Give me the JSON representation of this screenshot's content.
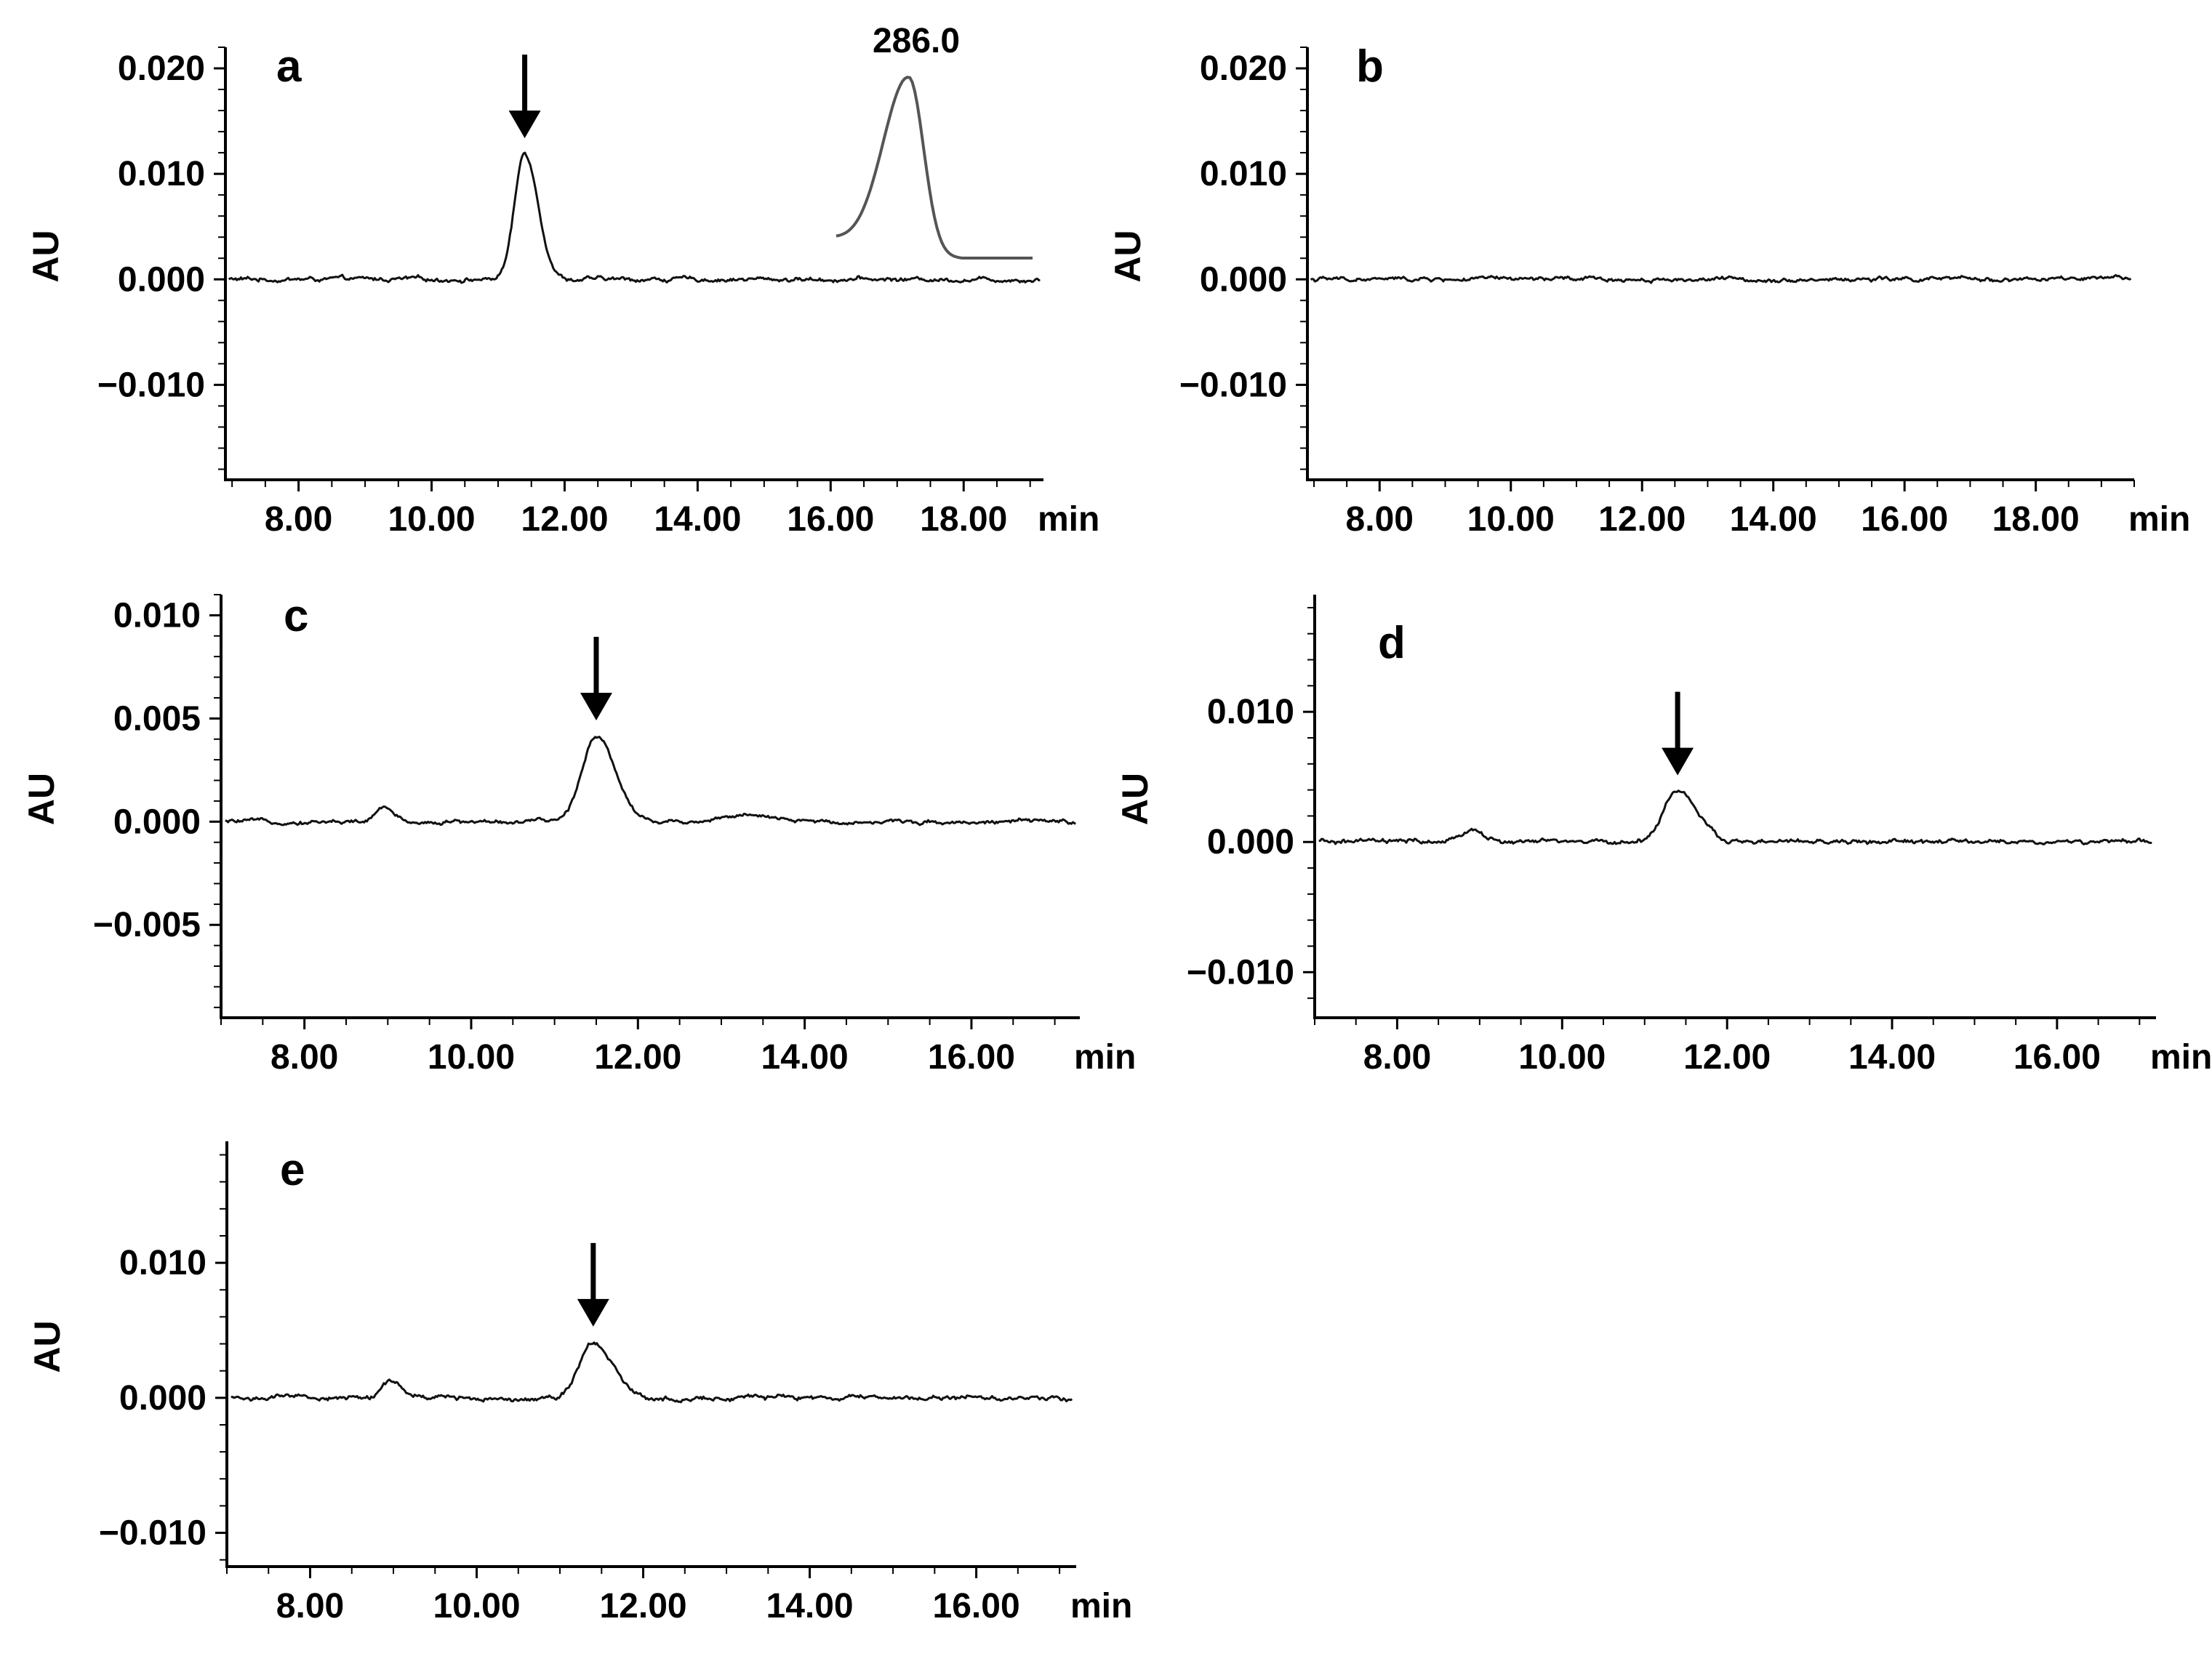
{
  "chart_data": [
    {
      "id": "a",
      "type": "line",
      "panel_label": "a",
      "ylabel": "AU",
      "x_unit_label": "min",
      "xlim": [
        6.9,
        19.2
      ],
      "ylim": [
        -0.019,
        0.022
      ],
      "xticks": [
        8,
        10,
        12,
        14,
        16,
        18
      ],
      "xtick_labels": [
        "8.00",
        "10.00",
        "12.00",
        "14.00",
        "16.00",
        "18.00"
      ],
      "yticks": [
        -0.01,
        0.0,
        0.01,
        0.02
      ],
      "ytick_labels": [
        "-0.010",
        "0.000",
        "0.010",
        "0.020"
      ],
      "baseline": 0.0,
      "noise": 0.00025,
      "peaks": [
        {
          "x": 11.4,
          "height": 0.012,
          "width": 0.15
        }
      ],
      "arrow_x": 11.4,
      "inset": {
        "label": "286.0"
      }
    },
    {
      "id": "b",
      "type": "line",
      "panel_label": "b",
      "ylabel": "AU",
      "x_unit_label": "min",
      "xlim": [
        6.9,
        19.5
      ],
      "ylim": [
        -0.019,
        0.022
      ],
      "xticks": [
        8,
        10,
        12,
        14,
        16,
        18
      ],
      "xtick_labels": [
        "8.00",
        "10.00",
        "12.00",
        "14.00",
        "16.00",
        "18.00"
      ],
      "yticks": [
        -0.01,
        0.0,
        0.01,
        0.02
      ],
      "ytick_labels": [
        "-0.010",
        "0.000",
        "0.010",
        "0.020"
      ],
      "baseline": 0.0,
      "noise": 0.00025,
      "peaks": []
    },
    {
      "id": "c",
      "type": "line",
      "panel_label": "c",
      "ylabel": "AU",
      "x_unit_label": "min",
      "xlim": [
        7.0,
        17.3
      ],
      "ylim": [
        -0.0095,
        0.011
      ],
      "xticks": [
        8,
        10,
        12,
        14,
        16
      ],
      "xtick_labels": [
        "8.00",
        "10.00",
        "12.00",
        "14.00",
        "16.00"
      ],
      "yticks": [
        -0.005,
        0.0,
        0.005,
        0.01
      ],
      "ytick_labels": [
        "-0.005",
        "0.000",
        "0.005",
        "0.010"
      ],
      "baseline": 0.0,
      "noise": 0.00012,
      "peaks": [
        {
          "x": 8.95,
          "height": 0.0007,
          "width": 0.08
        },
        {
          "x": 11.5,
          "height": 0.0042,
          "width": 0.17
        },
        {
          "x": 13.2,
          "height": 0.0003,
          "width": 0.25
        }
      ],
      "arrow_x": 11.5
    },
    {
      "id": "d",
      "type": "line",
      "panel_label": "d",
      "ylabel": "AU",
      "x_unit_label": "min",
      "xlim": [
        7.0,
        17.2
      ],
      "ylim": [
        -0.0135,
        0.019
      ],
      "xticks": [
        8,
        10,
        12,
        14,
        16
      ],
      "xtick_labels": [
        "8.00",
        "10.00",
        "12.00",
        "14.00",
        "16.00"
      ],
      "yticks": [
        -0.01,
        0.0,
        0.01
      ],
      "ytick_labels": [
        "-0.010",
        "0.000",
        "0.010"
      ],
      "baseline": 0.0,
      "noise": 0.00022,
      "peaks": [
        {
          "x": 8.9,
          "height": 0.001,
          "width": 0.1
        },
        {
          "x": 11.4,
          "height": 0.004,
          "width": 0.17
        }
      ],
      "arrow_x": 11.4
    },
    {
      "id": "e",
      "type": "line",
      "panel_label": "e",
      "ylabel": "AU",
      "x_unit_label": "min",
      "xlim": [
        7.0,
        17.2
      ],
      "ylim": [
        -0.0125,
        0.019
      ],
      "xticks": [
        8,
        10,
        12,
        14,
        16
      ],
      "xtick_labels": [
        "8.00",
        "10.00",
        "12.00",
        "14.00",
        "16.00"
      ],
      "yticks": [
        -0.01,
        0.0,
        0.01
      ],
      "ytick_labels": [
        "-0.010",
        "0.000",
        "0.010"
      ],
      "baseline": 0.0,
      "noise": 0.00022,
      "peaks": [
        {
          "x": 8.95,
          "height": 0.0012,
          "width": 0.1
        },
        {
          "x": 11.4,
          "height": 0.0042,
          "width": 0.17
        }
      ],
      "arrow_x": 11.4
    }
  ]
}
